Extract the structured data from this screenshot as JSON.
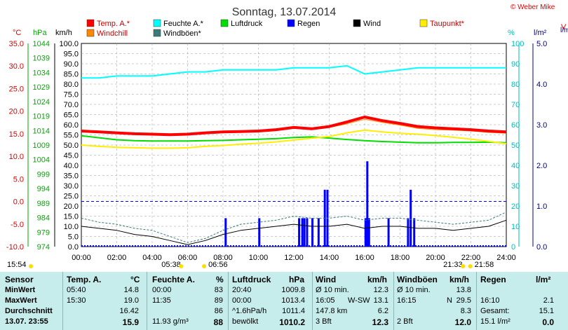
{
  "title": "Sonntag, 13.07.2014",
  "credit": "© Weber Mike",
  "partial_right": [
    "V",
    "l/m²"
  ],
  "colors": {
    "temp": "#ff0000",
    "humidity": "#00ffff",
    "pressure": "#00dd00",
    "rain": "#0000ff",
    "wind": "#000000",
    "dewpoint": "#ffee00",
    "windchill": "#ff8800",
    "gust": "#3a7a7a",
    "grid": "#999999",
    "table_bg": "#c6ecec"
  },
  "legend": [
    {
      "label": "Temp. A.*",
      "color": "#ff0000"
    },
    {
      "label": "Feuchte A.*",
      "color": "#00ffff"
    },
    {
      "label": "Luftdruck",
      "color": "#00dd00"
    },
    {
      "label": "Regen",
      "color": "#0000ff"
    },
    {
      "label": "Wind",
      "color": "#000000"
    },
    {
      "label": "Taupunkt*",
      "color": "#ffee00"
    },
    {
      "label": "Windchill",
      "color": "#ff8800"
    },
    {
      "label": "Windböen*",
      "color": "#3a7a7a"
    }
  ],
  "axes": {
    "temp": {
      "unit": "°C",
      "ticks": [
        "35.0",
        "30.0",
        "25.0",
        "20.0",
        "15.0",
        "10.0",
        "5.0",
        "0.0",
        "-5.0",
        "-10.0"
      ],
      "range": [
        -10,
        35
      ]
    },
    "pressure": {
      "unit": "hPa",
      "ticks": [
        "1044",
        "1039",
        "1034",
        "1029",
        "1024",
        "1019",
        "1014",
        "1009",
        "1004",
        "999",
        "994",
        "989",
        "984",
        "979",
        "974"
      ],
      "range": [
        974,
        1044
      ]
    },
    "wind": {
      "unit": "km/h",
      "ticks": [
        "100.0",
        "95.0",
        "90.0",
        "85.0",
        "80.0",
        "75.0",
        "70.0",
        "65.0",
        "60.0",
        "55.0",
        "50.0",
        "45.0",
        "40.0",
        "35.0",
        "30.0",
        "25.0",
        "20.0",
        "15.0",
        "10.0",
        "5.0",
        "0.0"
      ],
      "range": [
        0,
        100
      ]
    },
    "humidity": {
      "unit": "%",
      "ticks": [
        "100",
        "90",
        "80",
        "70",
        "60",
        "50",
        "40",
        "30",
        "20",
        "10",
        "0"
      ],
      "range": [
        0,
        100
      ]
    },
    "rain": {
      "unit": "l/m²",
      "ticks": [
        "5.0",
        "4.0",
        "3.0",
        "2.0",
        "1.0",
        "0.0"
      ],
      "range": [
        0,
        5
      ]
    },
    "time": {
      "ticks": [
        "00:00",
        "02:00",
        "04:00",
        "06:00",
        "08:00",
        "10:00",
        "12:00",
        "14:00",
        "16:00",
        "18:00",
        "20:00",
        "22:00",
        "24:00"
      ],
      "range": [
        0,
        24
      ]
    }
  },
  "sun_markers": [
    {
      "label": "15:54",
      "time": "15:54"
    },
    {
      "label": "05:38",
      "time": "05:38"
    },
    {
      "label": "06:56",
      "time": "06:56"
    },
    {
      "label": "21:33",
      "time": "21:33"
    },
    {
      "label": "21:58",
      "time": "21:58"
    }
  ],
  "chart_data": {
    "type": "line",
    "title": "Sonntag, 13.07.2014",
    "x": [
      0,
      1,
      2,
      3,
      4,
      5,
      6,
      7,
      8,
      9,
      10,
      11,
      12,
      13,
      14,
      15,
      16,
      17,
      18,
      19,
      20,
      21,
      22,
      23,
      24
    ],
    "xlim": [
      0,
      24
    ],
    "series": [
      {
        "name": "Temp. A.*",
        "axis": "°C",
        "values": [
          15.6,
          15.4,
          15.2,
          15.0,
          14.9,
          14.8,
          14.9,
          15.2,
          15.4,
          15.5,
          15.6,
          15.9,
          16.4,
          16.1,
          16.6,
          17.6,
          18.7,
          17.9,
          17.3,
          16.6,
          16.3,
          16.1,
          15.9,
          15.6,
          15.4
        ]
      },
      {
        "name": "Feuchte A.*",
        "axis": "%",
        "values": [
          83,
          83,
          84,
          84,
          84,
          85,
          86,
          86,
          87,
          87,
          87,
          87,
          88,
          88,
          88,
          89,
          85,
          86,
          87,
          88,
          88,
          88,
          88,
          88,
          88
        ]
      },
      {
        "name": "Luftdruck",
        "axis": "hPa",
        "values": [
          1012.2,
          1011.5,
          1010.8,
          1010.5,
          1010.4,
          1010.4,
          1010.4,
          1010.5,
          1010.6,
          1010.8,
          1011.0,
          1011.2,
          1011.6,
          1011.8,
          1011.4,
          1010.9,
          1010.5,
          1010.2,
          1010.0,
          1009.8,
          1009.8,
          1009.9,
          1009.9,
          1010.0,
          1009.8
        ]
      },
      {
        "name": "Taupunkt*",
        "axis": "°C",
        "values": [
          12.5,
          12.2,
          12.0,
          11.9,
          11.8,
          11.8,
          11.9,
          12.2,
          12.4,
          12.7,
          12.9,
          13.2,
          13.6,
          14.0,
          14.4,
          15.2,
          15.8,
          15.4,
          15.1,
          14.9,
          14.6,
          14.2,
          13.8,
          13.3,
          12.8
        ]
      },
      {
        "name": "Wind",
        "axis": "km/h",
        "values": [
          10,
          9,
          8,
          6,
          5,
          3,
          1,
          3,
          6,
          8,
          9,
          10,
          11,
          10,
          10,
          11,
          9,
          10,
          10,
          9,
          9,
          8,
          9,
          10,
          13
        ]
      },
      {
        "name": "Windböen*",
        "axis": "km/h",
        "values": [
          14,
          12,
          11,
          9,
          8,
          5,
          2,
          4,
          8,
          11,
          12,
          13,
          15,
          14,
          14,
          15,
          13,
          14,
          14,
          13,
          12,
          11,
          12,
          13,
          17
        ]
      },
      {
        "name": "Windchill",
        "axis": "°C",
        "values": [
          15.5,
          15.3,
          15.1,
          14.9,
          14.8,
          14.7,
          14.8,
          15.1,
          15.3,
          15.4,
          15.5,
          15.7,
          16.2,
          15.9,
          16.4,
          17.2,
          18.2,
          17.5,
          16.9,
          16.2,
          15.9,
          15.8,
          15.6,
          15.3,
          15.1
        ]
      }
    ],
    "rain": {
      "name": "Regen",
      "unit": "l/m²",
      "x": [
        8.15,
        10.05,
        12.3,
        12.48,
        12.6,
        12.75,
        13.05,
        13.4,
        13.75,
        13.9,
        16.05,
        16.15,
        16.25,
        17.35,
        18.45,
        18.6,
        18.8
      ],
      "values": [
        0.7,
        0.7,
        0.7,
        0.7,
        0.7,
        0.7,
        0.7,
        0.7,
        1.4,
        1.4,
        0.7,
        2.1,
        0.7,
        0.7,
        0.7,
        1.4,
        0.7
      ]
    }
  },
  "table": {
    "headers": {
      "sensor": "Sensor",
      "temp": "Temp. A.",
      "temp_unit": "°C",
      "hum": "Feuchte A.",
      "hum_unit": "%",
      "press": "Luftdruck",
      "press_unit": "hPa",
      "wind": "Wind",
      "wind_unit": "km/h",
      "gust": "Windböen",
      "gust_unit": "km/h",
      "rain": "Regen",
      "rain_unit": "l/m²"
    },
    "rows": [
      {
        "label": "MinWert",
        "temp_time": "05:40",
        "temp_val": "14.8",
        "hum_time": "00:00",
        "hum_val": "83",
        "press_time": "20:40",
        "press_val": "1009.8",
        "wind_a": "Ø 10 min.",
        "wind_val": "12.3",
        "gust_a": "Ø 10 min.",
        "gust_val": "13.8",
        "rain_a": "",
        "rain_val": ""
      },
      {
        "label": "MaxWert",
        "temp_time": "15:30",
        "temp_val": "19.0",
        "hum_time": "11:35",
        "hum_val": "89",
        "press_time": "00:00",
        "press_val": "1013.4",
        "wind_a": "16:05",
        "wind_b": "W-SW",
        "wind_val": "13.1",
        "gust_a": "16:15",
        "gust_b": "N",
        "gust_val": "29.5",
        "rain_a": "16:10",
        "rain_val": "2.1"
      },
      {
        "label": "Durchschnitt",
        "temp_time": "",
        "temp_val": "16.42",
        "hum_time": "",
        "hum_val": "86",
        "press_time": "^1.6hPa/h",
        "press_val": "1011.4",
        "wind_a": "147.8 km",
        "wind_val": "6.2",
        "gust_a": "",
        "gust_val": "8.3",
        "rain_a": "Gesamt:",
        "rain_val": "15.1"
      },
      {
        "label": "13.07. 23:55",
        "temp_time": "",
        "temp_val": "15.9",
        "hum_time": "11.93 g/m³",
        "hum_val": "88",
        "press_time": "bewölkt",
        "press_val": "1010.2",
        "wind_a": "3 Bft",
        "wind_val": "12.3",
        "gust_a": "2 Bft",
        "gust_val": "12.0",
        "rain_a": "15.1 l/m²",
        "rain_val": "0.0"
      }
    ]
  }
}
